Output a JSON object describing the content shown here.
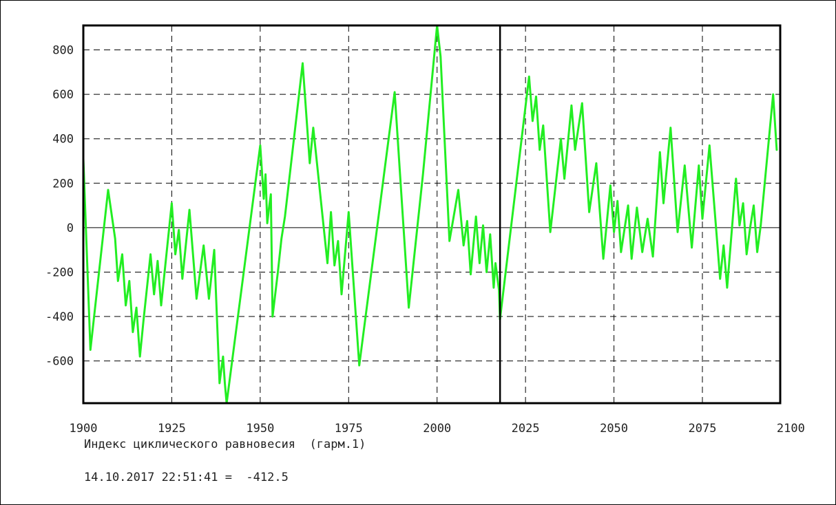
{
  "chart_data": {
    "type": "line",
    "title": "Индекс циклического равновесия  (гарм.1)",
    "xlabel": "",
    "ylabel": "",
    "xlim": [
      1900,
      2097
    ],
    "ylim": [
      -790,
      910
    ],
    "x_ticks": [
      1900,
      1925,
      1950,
      1975,
      2000,
      2025,
      2050,
      2075,
      2100
    ],
    "y_ticks": [
      -600,
      -400,
      -200,
      0,
      200,
      400,
      600,
      800
    ],
    "x_tick_labels": [
      "1900",
      "1925",
      "1950",
      "1975",
      "2000",
      "2025",
      "2050",
      "2075",
      "2100"
    ],
    "y_tick_labels": [
      "-600",
      "-400",
      "-200",
      "0",
      "200",
      "400",
      "600",
      "800"
    ],
    "grid": true,
    "current_marker_x": 2017.8,
    "colors": {
      "line": "#22ee22",
      "highlight": "#cc22cc",
      "grid": "#000000",
      "axes": "#000000"
    },
    "series": [
      {
        "x": [
          1900,
          1902,
          1907,
          1909,
          1909.8,
          1911,
          1912,
          1913,
          1914,
          1915,
          1916,
          1917,
          1919,
          1920,
          1921,
          1922,
          1925,
          1926,
          1927,
          1928,
          1930,
          1932,
          1934,
          1935.5,
          1937,
          1938.5,
          1939.5,
          1940,
          1940.5,
          1950,
          1951,
          1951.5,
          1952,
          1952.5,
          1953,
          1953.5,
          1955,
          1956,
          1957,
          1962,
          1964,
          1965,
          1969,
          1970,
          1971,
          1972,
          1973,
          1975,
          1978,
          1988,
          1992,
          1996,
          2000,
          2001,
          2003.5,
          2006,
          2007.5,
          2008.5,
          2009.5,
          2011,
          2012,
          2013,
          2014,
          2015,
          2016,
          2016.5,
          2017.5,
          2017.8
        ],
        "y": [
          310,
          -550,
          170,
          -50,
          -240,
          -120,
          -350,
          -240,
          -470,
          -360,
          -580,
          -420,
          -120,
          -300,
          -150,
          -350,
          110,
          -120,
          -10,
          -230,
          80,
          -320,
          -80,
          -320,
          -100,
          -700,
          -580,
          -700,
          -790,
          370,
          130,
          240,
          20,
          90,
          150,
          -400,
          -200,
          -50,
          50,
          740,
          290,
          450,
          -160,
          70,
          -170,
          -60,
          -300,
          70,
          -620,
          610,
          -360,
          240,
          910,
          770,
          -60,
          170,
          -80,
          30,
          -210,
          50,
          -160,
          10,
          -200,
          -30,
          -270,
          -160,
          -280,
          -412
        ]
      },
      {
        "x": [
          2017.8,
          2026,
          2027,
          2028,
          2029,
          2030,
          2032,
          2035,
          2036,
          2038,
          2039,
          2041,
          2043,
          2045,
          2047,
          2049,
          2050,
          2051,
          2052,
          2054,
          2055,
          2056.5,
          2058,
          2059.5,
          2061,
          2063,
          2064,
          2066,
          2068,
          2070,
          2072,
          2074,
          2075,
          2077,
          2080,
          2081,
          2082,
          2084.5,
          2085.5,
          2086.5,
          2087.5,
          2088.5,
          2089.5,
          2090.5,
          2091.5,
          2095,
          2096
        ],
        "y": [
          -412,
          680,
          480,
          590,
          350,
          460,
          -20,
          400,
          220,
          550,
          350,
          560,
          70,
          290,
          -140,
          190,
          -20,
          120,
          -110,
          100,
          -140,
          90,
          -110,
          40,
          -130,
          340,
          110,
          450,
          -20,
          280,
          -90,
          280,
          40,
          370,
          -230,
          -80,
          -270,
          220,
          10,
          110,
          -120,
          0,
          100,
          -110,
          10,
          600,
          350
        ]
      }
    ],
    "readout": "14.10.2017 22:51:41 =  -412.5"
  }
}
